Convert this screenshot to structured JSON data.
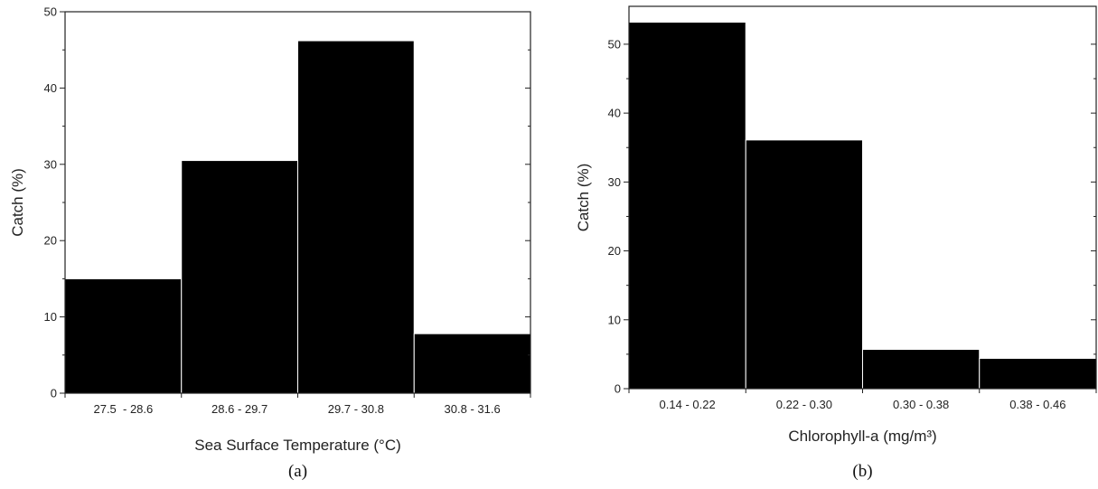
{
  "chart_data": [
    {
      "type": "bar",
      "panel_label": "(a)",
      "xlabel": "Sea Surface Temperature (°C)",
      "ylabel": "Catch (%)",
      "categories": [
        "27.5  - 28.6",
        "28.6 - 29.7",
        "29.7 - 30.8",
        "30.8 - 31.6"
      ],
      "values": [
        15.0,
        30.5,
        46.2,
        7.8
      ],
      "ylim": [
        0,
        50
      ],
      "yticks": [
        0,
        10,
        20,
        30,
        40,
        50
      ],
      "bar_color": "#000000",
      "grid": false,
      "legend": "none"
    },
    {
      "type": "bar",
      "panel_label": "(b)",
      "xlabel": "Chlorophyll-a (mg/m³)",
      "ylabel": "Catch (%)",
      "categories": [
        "0.14 - 0.22",
        "0.22 - 0.30",
        "0.30 - 0.38",
        "0.38 - 0.46"
      ],
      "values": [
        53.2,
        36.1,
        5.7,
        4.4
      ],
      "ylim": [
        0,
        55.5
      ],
      "yticks": [
        0,
        10,
        20,
        30,
        40,
        50
      ],
      "bar_color": "#000000",
      "grid": false,
      "legend": "none"
    }
  ]
}
